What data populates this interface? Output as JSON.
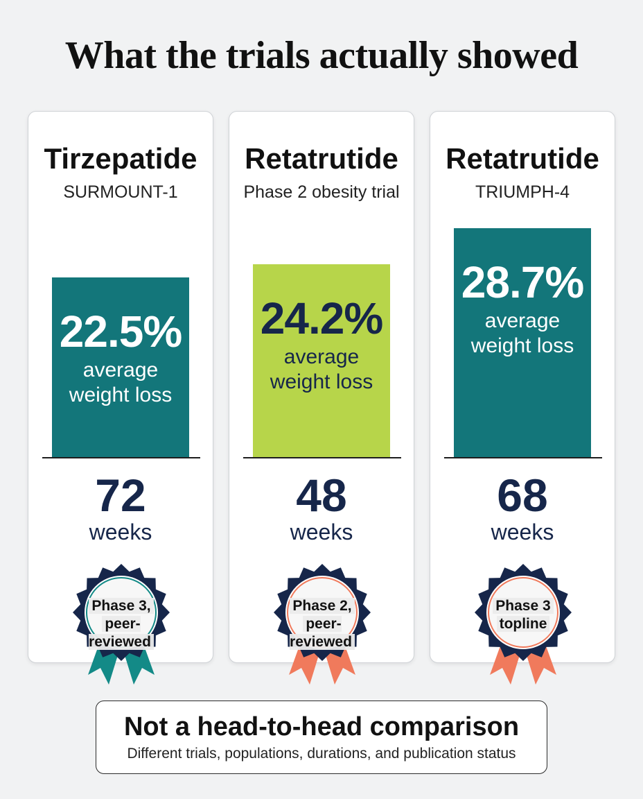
{
  "title": "What the trials actually showed",
  "colors": {
    "teal": "#13767a",
    "lime": "#b7d54a",
    "navy": "#16264a",
    "coral": "#f07a5c",
    "teal_ribbon": "#138a87"
  },
  "chart_data": {
    "type": "bar",
    "categories": [
      "Tirzepatide",
      "Retatrutide",
      "Retatrutide"
    ],
    "values": [
      22.5,
      24.2,
      28.7
    ],
    "ylim": [
      0,
      30
    ],
    "series": [
      {
        "values": [
          22.5,
          24.2,
          28.7
        ]
      }
    ]
  },
  "cards": [
    {
      "drug": "Tirzepatide",
      "trial": "SURMOUNT-1",
      "value": 22.5,
      "value_label": "22.5%",
      "caption": "average weight loss",
      "bar_color": "#13767a",
      "value_color": "#ffffff",
      "weeks": "72",
      "weeks_label": "weeks",
      "badge_line1": "Phase 3,",
      "badge_line2": "peer-reviewed",
      "ring_color": "#138a87",
      "ribbon_color": "#138a87"
    },
    {
      "drug": "Retatrutide",
      "trial": "Phase 2 obesity trial",
      "value": 24.2,
      "value_label": "24.2%",
      "caption": "average weight loss",
      "bar_color": "#b7d54a",
      "value_color": "#16264a",
      "weeks": "48",
      "weeks_label": "weeks",
      "badge_line1": "Phase 2,",
      "badge_line2": "peer-reviewed",
      "ring_color": "#f07a5c",
      "ribbon_color": "#f07a5c"
    },
    {
      "drug": "Retatrutide",
      "trial": "TRIUMPH-4",
      "value": 28.7,
      "value_label": "28.7%",
      "caption": "average weight loss",
      "bar_color": "#13767a",
      "value_color": "#ffffff",
      "weeks": "68",
      "weeks_label": "weeks",
      "badge_line1": "Phase 3",
      "badge_line2": "topline",
      "ring_color": "#f07a5c",
      "ribbon_color": "#f07a5c"
    }
  ],
  "note": {
    "title": "Not a head-to-head comparison",
    "subtitle": "Different trials, populations, durations, and publication status"
  }
}
